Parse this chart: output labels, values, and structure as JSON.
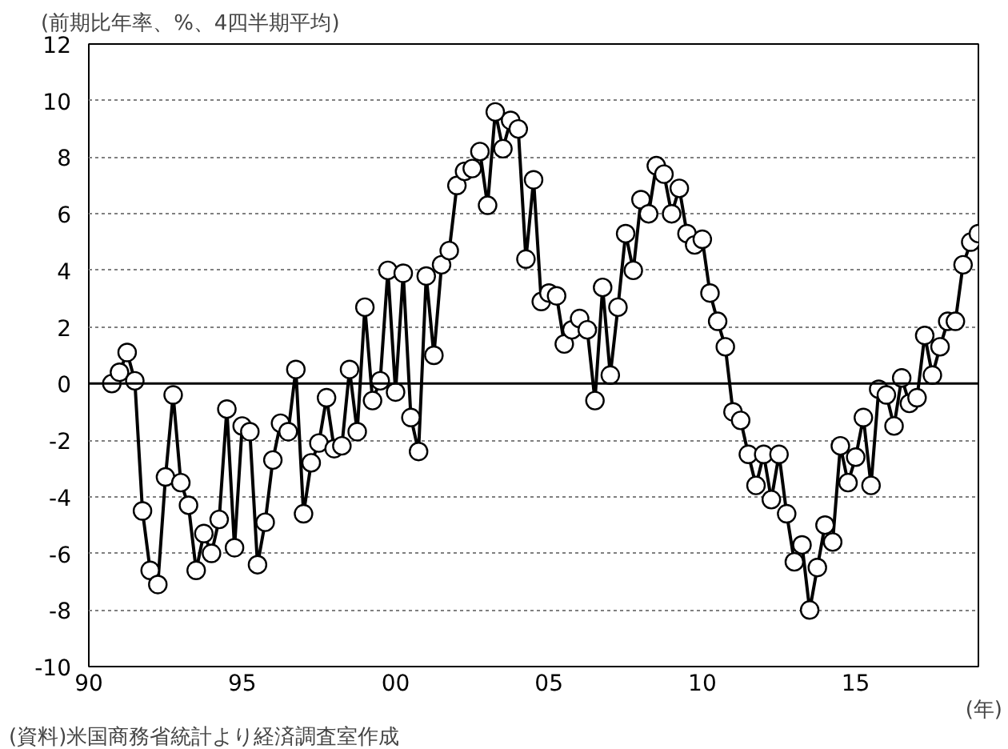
{
  "chart_data": {
    "type": "line",
    "subtitle": "(前期比年率、%、4四半期平均)",
    "xlabel": "(年)",
    "annotations": [
      "(資料)米国商務省統計より経済調査室作成"
    ],
    "x": [
      1990.75,
      1991.0,
      1991.25,
      1991.5,
      1991.75,
      1992.0,
      1992.25,
      1992.5,
      1992.75,
      1993.0,
      1993.25,
      1993.5,
      1993.75,
      1994.0,
      1994.25,
      1994.5,
      1994.75,
      1995.0,
      1995.25,
      1995.5,
      1995.75,
      1996.0,
      1996.25,
      1996.5,
      1996.75,
      1997.0,
      1997.25,
      1997.5,
      1997.75,
      1998.0,
      1998.25,
      1998.5,
      1998.75,
      1999.0,
      1999.25,
      1999.5,
      1999.75,
      2000.0,
      2000.25,
      2000.5,
      2000.75,
      2001.0,
      2001.25,
      2001.5,
      2001.75,
      2002.0,
      2002.25,
      2002.5,
      2002.75,
      2003.0,
      2003.25,
      2003.5,
      2003.75,
      2004.0,
      2004.25,
      2004.5,
      2004.75,
      2005.0,
      2005.25,
      2005.5,
      2005.75,
      2006.0,
      2006.25,
      2006.5,
      2006.75,
      2007.0,
      2007.25,
      2007.5,
      2007.75,
      2008.0,
      2008.25,
      2008.5,
      2008.75,
      2009.0,
      2009.25,
      2009.5,
      2009.75,
      2010.0,
      2010.25,
      2010.5,
      2010.75,
      2011.0,
      2011.25,
      2011.5,
      2011.75,
      2012.0,
      2012.25,
      2012.5,
      2012.75,
      2013.0,
      2013.25,
      2013.5,
      2013.75,
      2014.0,
      2014.25,
      2014.5,
      2014.75,
      2015.0,
      2015.25,
      2015.5,
      2015.75,
      2016.0,
      2016.25,
      2016.5,
      2016.75,
      2017.0,
      2017.25,
      2017.5,
      2017.75,
      2018.0,
      2018.25,
      2018.5,
      2018.75,
      2019.0
    ],
    "series": [
      {
        "color": "#000000",
        "values": [
          0.0,
          0.4,
          1.1,
          0.1,
          -4.5,
          -6.6,
          -7.1,
          -3.3,
          -0.4,
          -3.5,
          -4.3,
          -6.6,
          -5.3,
          -6.0,
          -4.8,
          -0.9,
          -5.8,
          -1.5,
          -1.7,
          -6.4,
          -4.9,
          -2.7,
          -1.4,
          -1.7,
          0.5,
          -4.6,
          -2.8,
          -2.1,
          -0.5,
          -2.3,
          -2.2,
          0.5,
          -1.7,
          2.7,
          -0.6,
          0.1,
          4.0,
          -0.3,
          3.9,
          -1.2,
          -2.4,
          3.8,
          1.0,
          4.2,
          4.7,
          7.0,
          7.5,
          7.6,
          8.2,
          6.3,
          9.6,
          8.3,
          9.3,
          9.0,
          4.4,
          7.2,
          2.9,
          3.2,
          3.1,
          1.4,
          1.9,
          2.3,
          1.9,
          -0.6,
          3.4,
          0.3,
          2.7,
          5.3,
          4.0,
          6.5,
          6.0,
          7.7,
          7.4,
          6.0,
          6.9,
          5.3,
          4.9,
          5.1,
          3.2,
          2.2,
          1.3,
          -1.0,
          -1.3,
          -2.5,
          -3.6,
          -2.5,
          -4.1,
          -2.5,
          -4.6,
          -6.3,
          -5.7,
          -8.0,
          -6.5,
          -5.0,
          -5.6,
          -2.2,
          -3.5,
          -2.6,
          -1.2,
          -3.6,
          -0.2,
          -0.4,
          -1.5,
          0.2,
          -0.7,
          -0.5,
          1.7,
          0.3,
          1.3,
          2.2,
          2.2,
          4.2,
          5.0,
          5.3
        ]
      }
    ],
    "xlim": [
      1990,
      2019
    ],
    "xticks": [
      {
        "value": 1990,
        "label": "90"
      },
      {
        "value": 1995,
        "label": "95"
      },
      {
        "value": 2000,
        "label": "00"
      },
      {
        "value": 2005,
        "label": "05"
      },
      {
        "value": 2010,
        "label": "10"
      },
      {
        "value": 2015,
        "label": "15"
      }
    ],
    "ylim": [
      -10,
      12
    ],
    "yticks": [
      -10,
      -8,
      -6,
      -4,
      -2,
      0,
      2,
      4,
      6,
      8,
      10,
      12
    ],
    "grid": "y",
    "ref_lines": [
      {
        "axis": "y",
        "value": 0,
        "color": "#000000"
      }
    ],
    "marker": "circle",
    "line_style": "solid"
  }
}
